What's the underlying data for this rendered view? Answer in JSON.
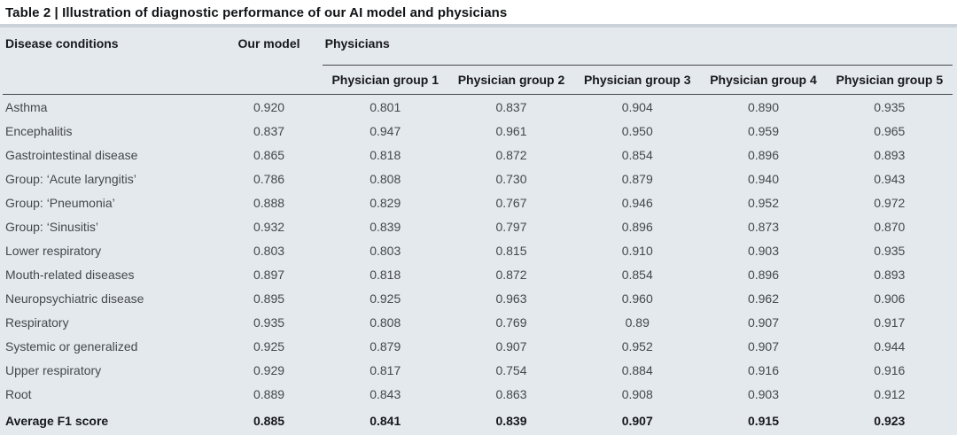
{
  "title": "Table 2 | Illustration of diagnostic performance of our AI model and physicians",
  "header": {
    "disease_col": "Disease conditions",
    "our_model_col": "Our model",
    "physicians_spanner": "Physicians",
    "physician_group_cols": [
      "Physician group 1",
      "Physician group 2",
      "Physician group 3",
      "Physician group 4",
      "Physician group 5"
    ]
  },
  "rows": [
    {
      "disease": "Asthma",
      "values": [
        "0.920",
        "0.801",
        "0.837",
        "0.904",
        "0.890",
        "0.935"
      ]
    },
    {
      "disease": "Encephalitis",
      "values": [
        "0.837",
        "0.947",
        "0.961",
        "0.950",
        "0.959",
        "0.965"
      ]
    },
    {
      "disease": "Gastrointestinal disease",
      "values": [
        "0.865",
        "0.818",
        "0.872",
        "0.854",
        "0.896",
        "0.893"
      ]
    },
    {
      "disease": "Group: ‘Acute laryngitis’",
      "values": [
        "0.786",
        "0.808",
        "0.730",
        "0.879",
        "0.940",
        "0.943"
      ]
    },
    {
      "disease": "Group: ‘Pneumonia’",
      "values": [
        "0.888",
        "0.829",
        "0.767",
        "0.946",
        "0.952",
        "0.972"
      ]
    },
    {
      "disease": "Group: ‘Sinusitis’",
      "values": [
        "0.932",
        "0.839",
        "0.797",
        "0.896",
        "0.873",
        "0.870"
      ]
    },
    {
      "disease": "Lower respiratory",
      "values": [
        "0.803",
        "0.803",
        "0.815",
        "0.910",
        "0.903",
        "0.935"
      ]
    },
    {
      "disease": "Mouth-related diseases",
      "values": [
        "0.897",
        "0.818",
        "0.872",
        "0.854",
        "0.896",
        "0.893"
      ]
    },
    {
      "disease": "Neuropsychiatric disease",
      "values": [
        "0.895",
        "0.925",
        "0.963",
        "0.960",
        "0.962",
        "0.906"
      ]
    },
    {
      "disease": "Respiratory",
      "values": [
        "0.935",
        "0.808",
        "0.769",
        "0.89",
        "0.907",
        "0.917"
      ]
    },
    {
      "disease": "Systemic or generalized",
      "values": [
        "0.925",
        "0.879",
        "0.907",
        "0.952",
        "0.907",
        "0.944"
      ]
    },
    {
      "disease": "Upper respiratory",
      "values": [
        "0.929",
        "0.817",
        "0.754",
        "0.884",
        "0.916",
        "0.916"
      ]
    },
    {
      "disease": "Root",
      "values": [
        "0.889",
        "0.843",
        "0.863",
        "0.908",
        "0.903",
        "0.912"
      ]
    }
  ],
  "average_row": {
    "label": "Average F1 score",
    "values": [
      "0.885",
      "0.841",
      "0.839",
      "0.907",
      "0.915",
      "0.923"
    ]
  },
  "colors": {
    "table_background": "#e4e9ee",
    "title_background": "#ffffff",
    "title_divider": "#cbd2d9",
    "header_rule": "#45494e",
    "bottom_rule": "#33373c",
    "header_text": "#17191b",
    "body_text": "#43484d"
  }
}
